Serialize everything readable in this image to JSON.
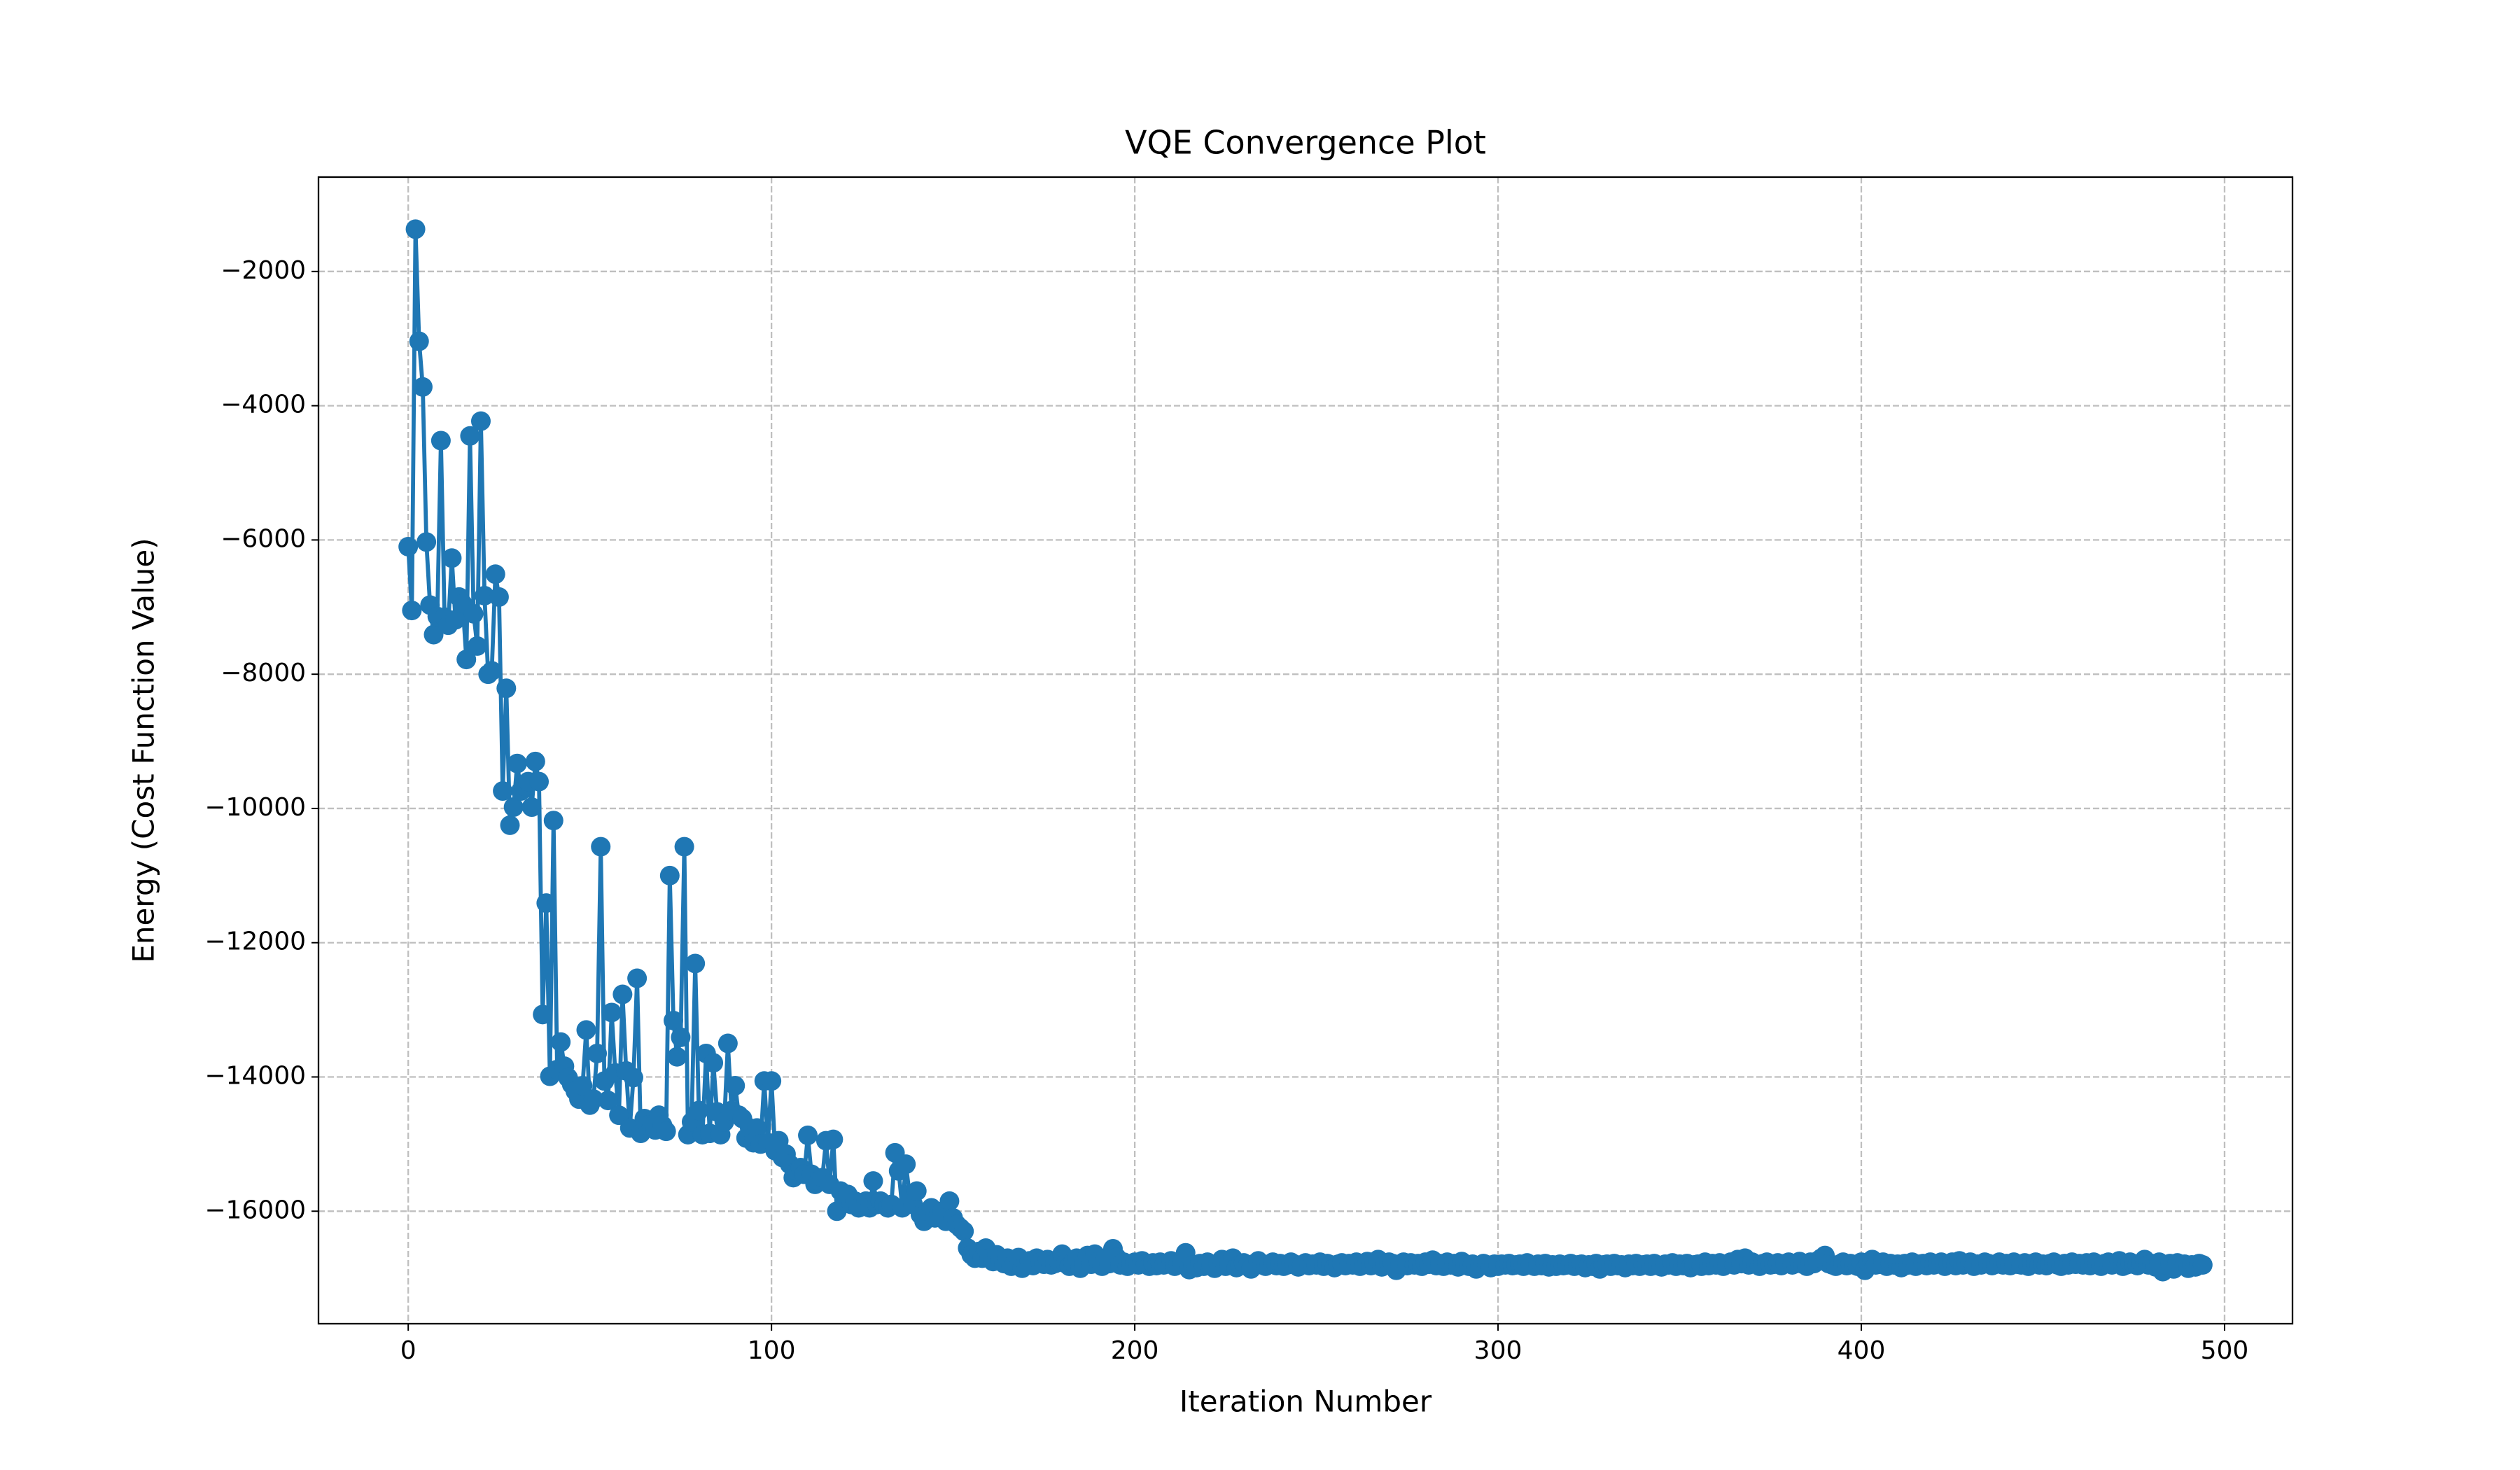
{
  "chart_data": {
    "type": "line",
    "title": "VQE Convergence Plot",
    "x_label": "Iteration Number",
    "y_label": "Energy (Cost Function Value)",
    "color": "#1f77b4",
    "grid": true,
    "marker": "o",
    "x": [
      0,
      1,
      2,
      3,
      4,
      5,
      6,
      7,
      8,
      9,
      10,
      11,
      12,
      13,
      14,
      15,
      16,
      17,
      18,
      19,
      20,
      21,
      22,
      23,
      24,
      25,
      26,
      27,
      28,
      29,
      30,
      31,
      32,
      33,
      34,
      35,
      36,
      37,
      38,
      39,
      40,
      41,
      42,
      43,
      44,
      45,
      46,
      47,
      48,
      49,
      50,
      51,
      52,
      53,
      54,
      55,
      56,
      57,
      58,
      59,
      60,
      61,
      62,
      63,
      64,
      65,
      66,
      67,
      68,
      69,
      70,
      71,
      72,
      73,
      74,
      75,
      76,
      77,
      78,
      79,
      80,
      81,
      82,
      83,
      84,
      85,
      86,
      87,
      88,
      89,
      90,
      91,
      92,
      93,
      94,
      95,
      96,
      97,
      98,
      99,
      100,
      101,
      102,
      103,
      104,
      105,
      106,
      107,
      108,
      109,
      110,
      111,
      112,
      113,
      114,
      115,
      116,
      117,
      118,
      119,
      120,
      121,
      122,
      123,
      124,
      125,
      126,
      127,
      128,
      129,
      130,
      131,
      132,
      133,
      134,
      135,
      136,
      137,
      138,
      139,
      140,
      141,
      142,
      143,
      144,
      145,
      146,
      147,
      148,
      149,
      150,
      151,
      152,
      153,
      154,
      155,
      156,
      157,
      158,
      159,
      160,
      161,
      162,
      163,
      164,
      165,
      166,
      167,
      168,
      169,
      170,
      171,
      172,
      173,
      174,
      175,
      176,
      177,
      178,
      179,
      180,
      181,
      182,
      183,
      184,
      185,
      186,
      187,
      188,
      189,
      190,
      191,
      192,
      193,
      194,
      195,
      196,
      197,
      198,
      199,
      200,
      201,
      202,
      203,
      204,
      205,
      206,
      207,
      208,
      209,
      210,
      211,
      212,
      213,
      214,
      215,
      216,
      217,
      218,
      219,
      220,
      221,
      222,
      223,
      224,
      225,
      226,
      227,
      228,
      229,
      230,
      231,
      232,
      233,
      234,
      235,
      236,
      237,
      238,
      239,
      240,
      241,
      242,
      243,
      244,
      245,
      246,
      247,
      248,
      249,
      250,
      251,
      252,
      253,
      254,
      255,
      256,
      257,
      258,
      259,
      260,
      261,
      262,
      263,
      264,
      265,
      266,
      267,
      268,
      269,
      270,
      271,
      272,
      273,
      274,
      275,
      276,
      277,
      278,
      279,
      280,
      281,
      282,
      283,
      284,
      285,
      286,
      287,
      288,
      289,
      290,
      291,
      292,
      293,
      294,
      295,
      296,
      297,
      298,
      299,
      300,
      301,
      302,
      303,
      304,
      305,
      306,
      307,
      308,
      309,
      310,
      311,
      312,
      313,
      314,
      315,
      316,
      317,
      318,
      319,
      320,
      321,
      322,
      323,
      324,
      325,
      326,
      327,
      328,
      329,
      330,
      331,
      332,
      333,
      334,
      335,
      336,
      337,
      338,
      339,
      340,
      341,
      342,
      343,
      344,
      345,
      346,
      347,
      348,
      349,
      350,
      351,
      352,
      353,
      354,
      355,
      356,
      357,
      358,
      359,
      360,
      361,
      362,
      363,
      364,
      365,
      366,
      367,
      368,
      369,
      370,
      371,
      372,
      373,
      374,
      375,
      376,
      377,
      378,
      379,
      380,
      381,
      382,
      383,
      384,
      385,
      386,
      387,
      388,
      389,
      390,
      391,
      392,
      393,
      394,
      395,
      396,
      397,
      398,
      399,
      400,
      401,
      402,
      403,
      404,
      405,
      406,
      407,
      408,
      409,
      410,
      411,
      412,
      413,
      414,
      415,
      416,
      417,
      418,
      419,
      420,
      421,
      422,
      423,
      424,
      425,
      426,
      427,
      428,
      429,
      430,
      431,
      432,
      433,
      434,
      435,
      436,
      437,
      438,
      439,
      440,
      441,
      442,
      443,
      444,
      445,
      446,
      447,
      448,
      449,
      450,
      451,
      452,
      453,
      454,
      455,
      456,
      457,
      458,
      459,
      460,
      461,
      462,
      463,
      464,
      465,
      466,
      467,
      468,
      469,
      470,
      471,
      472,
      473,
      474,
      475,
      476,
      477,
      478,
      479,
      480,
      481,
      482,
      483,
      484,
      485,
      486,
      487,
      488,
      489,
      490,
      491,
      492,
      493,
      494
    ],
    "values": [
      -6100,
      -7050,
      -1370,
      -3040,
      -3720,
      -6030,
      -6970,
      -7410,
      -7140,
      -4520,
      -7150,
      -7270,
      -6270,
      -7190,
      -6850,
      -6950,
      -7780,
      -4450,
      -7100,
      -7580,
      -4230,
      -6830,
      -8000,
      -7950,
      -6510,
      -6850,
      -9740,
      -8210,
      -10250,
      -9980,
      -9330,
      -9740,
      -9670,
      -9600,
      -9980,
      -9300,
      -9600,
      -13070,
      -11410,
      -13990,
      -10180,
      -13890,
      -13480,
      -13840,
      -14010,
      -14110,
      -14210,
      -14330,
      -14130,
      -13300,
      -14420,
      -14330,
      -13650,
      -10570,
      -14060,
      -14350,
      -13040,
      -13940,
      -14570,
      -12770,
      -13910,
      -14760,
      -14010,
      -12530,
      -14840,
      -14620,
      -14720,
      -14740,
      -14790,
      -14570,
      -14720,
      -14810,
      -11000,
      -13160,
      -13700,
      -13410,
      -10570,
      -14860,
      -14670,
      -12310,
      -14500,
      -14860,
      -13650,
      -14840,
      -13790,
      -14520,
      -14860,
      -14670,
      -13500,
      -14500,
      -14130,
      -14570,
      -14620,
      -14910,
      -14760,
      -14980,
      -14760,
      -15000,
      -14060,
      -14980,
      -14060,
      -15100,
      -14950,
      -15200,
      -15150,
      -15300,
      -15500,
      -15400,
      -15350,
      -15450,
      -14870,
      -15450,
      -15600,
      -15550,
      -15500,
      -14950,
      -15600,
      -14930,
      -16000,
      -15700,
      -15850,
      -15750,
      -15900,
      -15850,
      -15950,
      -15900,
      -15850,
      -15950,
      -15550,
      -15900,
      -15850,
      -15900,
      -15950,
      -15900,
      -15130,
      -15400,
      -15950,
      -15300,
      -15750,
      -15900,
      -15700,
      -16050,
      -16150,
      -16000,
      -15950,
      -16100,
      -16050,
      -16000,
      -16150,
      -15850,
      -16100,
      -16200,
      -16250,
      -16300,
      -16550,
      -16650,
      -16700,
      -16600,
      -16700,
      -16550,
      -16700,
      -16750,
      -16650,
      -16720,
      -16780,
      -16700,
      -16820,
      -16760,
      -16690,
      -16850,
      -16780,
      -16740,
      -16810,
      -16700,
      -16760,
      -16790,
      -16720,
      -16800,
      -16780,
      -16740,
      -16640,
      -16780,
      -16820,
      -16760,
      -16700,
      -16850,
      -16780,
      -16660,
      -16790,
      -16640,
      -16750,
      -16820,
      -16700,
      -16780,
      -16560,
      -16690,
      -16800,
      -16760,
      -16820,
      -16780,
      -16760,
      -16800,
      -16740,
      -16790,
      -16820,
      -16770,
      -16810,
      -16760,
      -16800,
      -16780,
      -16740,
      -16820,
      -16790,
      -16760,
      -16620,
      -16870,
      -16800,
      -16840,
      -16780,
      -16820,
      -16760,
      -16800,
      -16850,
      -16780,
      -16720,
      -16820,
      -16790,
      -16700,
      -16840,
      -16800,
      -16770,
      -16820,
      -16860,
      -16780,
      -16740,
      -16800,
      -16820,
      -16790,
      -16760,
      -16810,
      -16780,
      -16820,
      -16800,
      -16760,
      -16790,
      -16830,
      -16800,
      -16770,
      -16810,
      -16790,
      -16800,
      -16760,
      -16820,
      -16780,
      -16800,
      -16840,
      -16790,
      -16770,
      -16810,
      -16780,
      -16800,
      -16760,
      -16820,
      -16790,
      -16750,
      -16810,
      -16780,
      -16720,
      -16830,
      -16800,
      -16760,
      -16780,
      -16880,
      -16790,
      -16760,
      -16810,
      -16770,
      -16800,
      -16780,
      -16820,
      -16760,
      -16790,
      -16730,
      -16810,
      -16780,
      -16820,
      -16760,
      -16800,
      -16780,
      -16830,
      -16750,
      -16800,
      -16820,
      -16790,
      -16860,
      -16810,
      -16780,
      -16800,
      -16840,
      -16790,
      -16820,
      -16790,
      -16800,
      -16780,
      -16810,
      -16800,
      -16790,
      -16820,
      -16770,
      -16800,
      -16820,
      -16790,
      -16810,
      -16780,
      -16830,
      -16800,
      -16820,
      -16790,
      -16810,
      -16800,
      -16780,
      -16820,
      -16800,
      -16790,
      -16840,
      -16800,
      -16820,
      -16780,
      -16860,
      -16800,
      -16790,
      -16820,
      -16780,
      -16810,
      -16800,
      -16840,
      -16790,
      -16810,
      -16780,
      -16820,
      -16800,
      -16790,
      -16820,
      -16780,
      -16810,
      -16830,
      -16790,
      -16800,
      -16770,
      -16820,
      -16790,
      -16810,
      -16780,
      -16840,
      -16800,
      -16790,
      -16820,
      -16760,
      -16810,
      -16780,
      -16800,
      -16770,
      -16820,
      -16790,
      -16760,
      -16800,
      -16720,
      -16780,
      -16700,
      -16800,
      -16760,
      -16790,
      -16820,
      -16780,
      -16760,
      -16800,
      -16790,
      -16770,
      -16810,
      -16780,
      -16760,
      -16800,
      -16780,
      -16750,
      -16790,
      -16820,
      -16760,
      -16780,
      -16740,
      -16700,
      -16660,
      -16780,
      -16800,
      -16820,
      -16790,
      -16760,
      -16810,
      -16780,
      -16800,
      -16820,
      -16760,
      -16880,
      -16780,
      -16720,
      -16800,
      -16790,
      -16760,
      -16820,
      -16780,
      -16800,
      -16790,
      -16840,
      -16780,
      -16800,
      -16760,
      -16820,
      -16790,
      -16780,
      -16810,
      -16760,
      -16800,
      -16780,
      -16760,
      -16820,
      -16790,
      -16760,
      -16810,
      -16740,
      -16800,
      -16780,
      -16760,
      -16820,
      -16790,
      -16800,
      -16760,
      -16780,
      -16810,
      -16790,
      -16760,
      -16800,
      -16780,
      -16810,
      -16760,
      -16790,
      -16800,
      -16770,
      -16820,
      -16780,
      -16760,
      -16800,
      -16790,
      -16810,
      -16780,
      -16760,
      -16800,
      -16820,
      -16780,
      -16800,
      -16760,
      -16790,
      -16780,
      -16800,
      -16770,
      -16810,
      -16760,
      -16790,
      -16820,
      -16780,
      -16760,
      -16800,
      -16780,
      -16740,
      -16820,
      -16800,
      -16760,
      -16790,
      -16810,
      -16770,
      -16720,
      -16800,
      -16780,
      -16830,
      -16760,
      -16900,
      -16800,
      -16780,
      -16860,
      -16770,
      -16810,
      -16790,
      -16850,
      -16800,
      -16830,
      -16780,
      -16800
    ],
    "xlim": [
      -24.7,
      518.7
    ],
    "xticks": [
      0,
      100,
      200,
      300,
      400,
      500
    ],
    "ylim": [
      -17676,
      -594
    ],
    "yticks": [
      {
        "value": -16000,
        "label": "−16000"
      },
      {
        "value": -14000,
        "label": "−14000"
      },
      {
        "value": -12000,
        "label": "−12000"
      },
      {
        "value": -10000,
        "label": "−10000"
      },
      {
        "value": -8000,
        "label": "−8000"
      },
      {
        "value": -6000,
        "label": "−6000"
      },
      {
        "value": -4000,
        "label": "−4000"
      },
      {
        "value": -2000,
        "label": "−2000"
      }
    ]
  }
}
